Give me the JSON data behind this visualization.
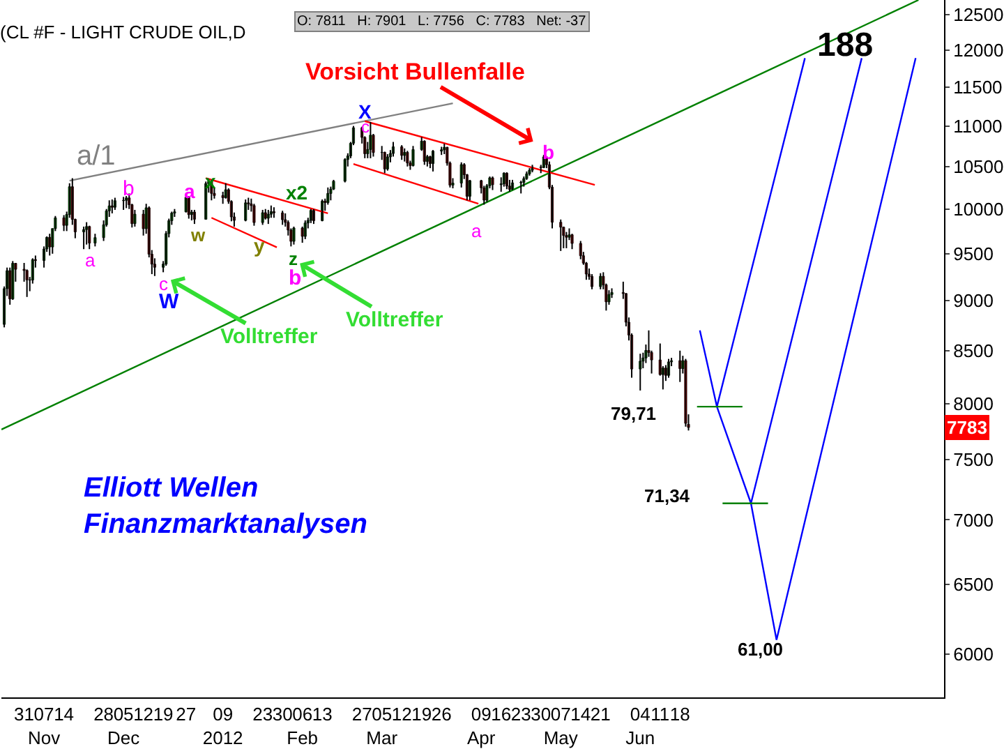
{
  "chart_data": {
    "type": "candlestick",
    "title": "(CL #F - LIGHT CRUDE OIL,D",
    "subtitle": "O: 7811   H: 7901   L: 7756   C: 7783   Net: -37",
    "log": true,
    "x": [
      "2011-10-24",
      "2011-10-25",
      "2011-10-26",
      "2011-10-27",
      "2011-10-28",
      "2011-10-31",
      "2011-11-01",
      "2011-11-02",
      "2011-11-03",
      "2011-11-04",
      "2011-11-07",
      "2011-11-08",
      "2011-11-09",
      "2011-11-10",
      "2011-11-11",
      "2011-11-14",
      "2011-11-15",
      "2011-11-16",
      "2011-11-17",
      "2011-11-18",
      "2011-11-21",
      "2011-11-22",
      "2011-11-23",
      "2011-11-25",
      "2011-11-28",
      "2011-11-29",
      "2011-11-30",
      "2011-12-01",
      "2011-12-02",
      "2011-12-05",
      "2011-12-06",
      "2011-12-07",
      "2011-12-08",
      "2011-12-09",
      "2011-12-12",
      "2011-12-13",
      "2011-12-14",
      "2011-12-15",
      "2011-12-16",
      "2011-12-19",
      "2011-12-20",
      "2011-12-21",
      "2011-12-22",
      "2011-12-23",
      "2011-12-27",
      "2011-12-28",
      "2011-12-29",
      "2011-12-30",
      "2012-01-03",
      "2012-01-04",
      "2012-01-05",
      "2012-01-06",
      "2012-01-09",
      "2012-01-10",
      "2012-01-11",
      "2012-01-12",
      "2012-01-13",
      "2012-01-17",
      "2012-01-18",
      "2012-01-19",
      "2012-01-20",
      "2012-01-23",
      "2012-01-24",
      "2012-01-25",
      "2012-01-26",
      "2012-01-27",
      "2012-01-30",
      "2012-01-31",
      "2012-02-01",
      "2012-02-02",
      "2012-02-03",
      "2012-02-06",
      "2012-02-07",
      "2012-02-08",
      "2012-02-09",
      "2012-02-10",
      "2012-02-13",
      "2012-02-14",
      "2012-02-15",
      "2012-02-16",
      "2012-02-17",
      "2012-02-21",
      "2012-02-22",
      "2012-02-23",
      "2012-02-24",
      "2012-02-27",
      "2012-02-28",
      "2012-02-29",
      "2012-03-01",
      "2012-03-02",
      "2012-03-05",
      "2012-03-06",
      "2012-03-07",
      "2012-03-08",
      "2012-03-09",
      "2012-03-12",
      "2012-03-13",
      "2012-03-14",
      "2012-03-15",
      "2012-03-16",
      "2012-03-19",
      "2012-03-20",
      "2012-03-21",
      "2012-03-22",
      "2012-03-23",
      "2012-03-26",
      "2012-03-27",
      "2012-03-28",
      "2012-03-29",
      "2012-03-30",
      "2012-04-02",
      "2012-04-03",
      "2012-04-04",
      "2012-04-05",
      "2012-04-09",
      "2012-04-10",
      "2012-04-11",
      "2012-04-12",
      "2012-04-13",
      "2012-04-16",
      "2012-04-17",
      "2012-04-18",
      "2012-04-19",
      "2012-04-20",
      "2012-04-23",
      "2012-04-24",
      "2012-04-25",
      "2012-04-26",
      "2012-04-27",
      "2012-04-30",
      "2012-05-01",
      "2012-05-02",
      "2012-05-03",
      "2012-05-04",
      "2012-05-07",
      "2012-05-08",
      "2012-05-09",
      "2012-05-10",
      "2012-05-11",
      "2012-05-14",
      "2012-05-15",
      "2012-05-16",
      "2012-05-17",
      "2012-05-18",
      "2012-05-21",
      "2012-05-22",
      "2012-05-23",
      "2012-05-24",
      "2012-05-25",
      "2012-05-29",
      "2012-05-30",
      "2012-05-31",
      "2012-06-01",
      "2012-06-04",
      "2012-06-05",
      "2012-06-06",
      "2012-06-07",
      "2012-06-08",
      "2012-06-11",
      "2012-06-12",
      "2012-06-13",
      "2012-06-14",
      "2012-06-15",
      "2012-06-18",
      "2012-06-19",
      "2012-06-20",
      "2012-06-21"
    ],
    "ohlc": [
      [
        8760,
        9150,
        8730,
        9127
      ],
      [
        9127,
        9350,
        9050,
        9317
      ],
      [
        9317,
        9350,
        8960,
        9020
      ],
      [
        9020,
        9420,
        9010,
        9396
      ],
      [
        9396,
        9400,
        9200,
        9332
      ],
      [
        9332,
        9400,
        9200,
        9319
      ],
      [
        9319,
        9330,
        9040,
        9219
      ],
      [
        9219,
        9250,
        9100,
        9217
      ],
      [
        9217,
        9450,
        9180,
        9436
      ],
      [
        9436,
        9480,
        9350,
        9426
      ],
      [
        9426,
        9580,
        9350,
        9552
      ],
      [
        9552,
        9690,
        9520,
        9680
      ],
      [
        9680,
        9720,
        9480,
        9574
      ],
      [
        9574,
        9780,
        9500,
        9778
      ],
      [
        9778,
        9920,
        9750,
        9899
      ],
      [
        9899,
        9930,
        9750,
        9814
      ],
      [
        9814,
        9970,
        9750,
        9937
      ],
      [
        9937,
        10300,
        9900,
        10259
      ],
      [
        10259,
        10360,
        9820,
        9882
      ],
      [
        9882,
        9890,
        9670,
        9741
      ],
      [
        9741,
        9800,
        9550,
        9767
      ],
      [
        9767,
        9850,
        9600,
        9801
      ],
      [
        9801,
        9810,
        9550,
        9617
      ],
      [
        9617,
        9720,
        9580,
        9677
      ],
      [
        9677,
        9870,
        9640,
        9821
      ],
      [
        9821,
        10000,
        9800,
        9979
      ],
      [
        9979,
        10100,
        9910,
        10036
      ],
      [
        10036,
        10110,
        9950,
        10020
      ],
      [
        10020,
        10130,
        9990,
        10096
      ],
      [
        10096,
        10140,
        9990,
        10100
      ],
      [
        10100,
        10150,
        10010,
        10128
      ],
      [
        10128,
        10180,
        10000,
        10049
      ],
      [
        10049,
        10060,
        9790,
        9834
      ],
      [
        9834,
        9990,
        9800,
        9941
      ],
      [
        9941,
        9990,
        9700,
        9777
      ],
      [
        9777,
        10060,
        9720,
        10014
      ],
      [
        10014,
        10030,
        9460,
        9495
      ],
      [
        9495,
        9540,
        9280,
        9387
      ],
      [
        9387,
        9450,
        9260,
        9353
      ],
      [
        9353,
        9420,
        9300,
        9388
      ],
      [
        9388,
        9750,
        9370,
        9722
      ],
      [
        9722,
        9890,
        9680,
        9867
      ],
      [
        9867,
        9970,
        9820,
        9953
      ],
      [
        9953,
        10000,
        9910,
        9968
      ],
      [
        9968,
        10160,
        9960,
        10134
      ],
      [
        10134,
        10150,
        9890,
        9936
      ],
      [
        9936,
        9990,
        9870,
        9965
      ],
      [
        9965,
        9990,
        9830,
        9883
      ],
      [
        9883,
        10320,
        9880,
        10296
      ],
      [
        10296,
        10350,
        10190,
        10322
      ],
      [
        10322,
        10340,
        10100,
        10181
      ],
      [
        10181,
        10250,
        10120,
        10156
      ],
      [
        10156,
        10200,
        10060,
        10131
      ],
      [
        10131,
        10300,
        10120,
        10224
      ],
      [
        10224,
        10240,
        10060,
        10087
      ],
      [
        10087,
        10100,
        9860,
        9910
      ],
      [
        9910,
        9960,
        9800,
        9870
      ],
      [
        9870,
        10110,
        9860,
        10071
      ],
      [
        10071,
        10130,
        9990,
        10059
      ],
      [
        10059,
        10120,
        9970,
        10039
      ],
      [
        10039,
        10060,
        9810,
        9846
      ],
      [
        9846,
        9990,
        9820,
        9958
      ],
      [
        9958,
        10000,
        9880,
        9895
      ],
      [
        9895,
        9990,
        9830,
        9940
      ],
      [
        9940,
        10040,
        9900,
        9970
      ],
      [
        9970,
        10020,
        9900,
        9956
      ],
      [
        9956,
        9980,
        9820,
        9878
      ],
      [
        9878,
        9950,
        9800,
        9848
      ],
      [
        9848,
        9870,
        9700,
        9761
      ],
      [
        9761,
        9780,
        9580,
        9636
      ],
      [
        9636,
        9800,
        9600,
        9784
      ],
      [
        9784,
        9800,
        9620,
        9691
      ],
      [
        9691,
        9870,
        9660,
        9841
      ],
      [
        9841,
        9900,
        9780,
        9870
      ],
      [
        9870,
        10000,
        9840,
        9984
      ],
      [
        9984,
        10000,
        9830,
        9867
      ],
      [
        9867,
        10110,
        9860,
        10091
      ],
      [
        10091,
        10120,
        9980,
        10074
      ],
      [
        10074,
        10250,
        10050,
        10180
      ],
      [
        10180,
        10260,
        10100,
        10231
      ],
      [
        10231,
        10340,
        10220,
        10324
      ],
      [
        10324,
        10600,
        10310,
        10584
      ],
      [
        10584,
        10660,
        10500,
        10628
      ],
      [
        10628,
        10800,
        10600,
        10783
      ],
      [
        10783,
        11000,
        10760,
        10977
      ],
      [
        10977,
        10990,
        10780,
        10856
      ],
      [
        10856,
        10870,
        10600,
        10655
      ],
      [
        10655,
        10800,
        10600,
        10707
      ],
      [
        10707,
        11050,
        10600,
        10884
      ],
      [
        10884,
        10900,
        10620,
        10670
      ],
      [
        10670,
        10750,
        10580,
        10672
      ],
      [
        10672,
        10680,
        10420,
        10470
      ],
      [
        10470,
        10650,
        10450,
        10616
      ],
      [
        10616,
        10700,
        10550,
        10658
      ],
      [
        10658,
        10800,
        10620,
        10740
      ],
      [
        10740,
        10760,
        10580,
        10634
      ],
      [
        10634,
        10720,
        10560,
        10671
      ],
      [
        10671,
        10690,
        10500,
        10543
      ],
      [
        10543,
        10570,
        10460,
        10511
      ],
      [
        10511,
        10750,
        10500,
        10706
      ],
      [
        10706,
        10860,
        10690,
        10809
      ],
      [
        10809,
        10820,
        10520,
        10561
      ],
      [
        10561,
        10640,
        10500,
        10619
      ],
      [
        10619,
        10630,
        10480,
        10535
      ],
      [
        10535,
        10700,
        10440,
        10687
      ],
      [
        10687,
        10740,
        10640,
        10703
      ],
      [
        10703,
        10780,
        10650,
        10733
      ],
      [
        10733,
        10740,
        10510,
        10541
      ],
      [
        10541,
        10560,
        10250,
        10278
      ],
      [
        10278,
        10360,
        10240,
        10302
      ],
      [
        10302,
        10550,
        10250,
        10523
      ],
      [
        10523,
        10540,
        10350,
        10401
      ],
      [
        10401,
        10410,
        10100,
        10147
      ],
      [
        10147,
        10340,
        10100,
        10331
      ],
      [
        10331,
        10340,
        10180,
        10246
      ],
      [
        10246,
        10270,
        10050,
        10102
      ],
      [
        10102,
        10290,
        10080,
        10270
      ],
      [
        10270,
        10380,
        10240,
        10364
      ],
      [
        10364,
        10380,
        10220,
        10283
      ],
      [
        10283,
        10370,
        10200,
        10293
      ],
      [
        10293,
        10430,
        10260,
        10420
      ],
      [
        10420,
        10430,
        10230,
        10267
      ],
      [
        10267,
        10340,
        10200,
        10227
      ],
      [
        10227,
        10340,
        10220,
        10305
      ],
      [
        10305,
        10330,
        10180,
        10311
      ],
      [
        10311,
        10380,
        10260,
        10355
      ],
      [
        10355,
        10440,
        10340,
        10412
      ],
      [
        10412,
        10480,
        10390,
        10455
      ],
      [
        10455,
        10520,
        10430,
        10493
      ],
      [
        10493,
        10520,
        10420,
        10487
      ],
      [
        10487,
        10640,
        10480,
        10616
      ],
      [
        10616,
        10620,
        10480,
        10522
      ],
      [
        10522,
        10560,
        10230,
        10254
      ],
      [
        10254,
        10280,
        9780,
        9849
      ],
      [
        9849,
        9880,
        9530,
        9794
      ],
      [
        9794,
        9800,
        9560,
        9701
      ],
      [
        9701,
        9740,
        9560,
        9681
      ],
      [
        9681,
        9780,
        9650,
        9708
      ],
      [
        9708,
        9720,
        9550,
        9613
      ],
      [
        9613,
        9640,
        9440,
        9478
      ],
      [
        9478,
        9520,
        9380,
        9398
      ],
      [
        9398,
        9410,
        9220,
        9281
      ],
      [
        9281,
        9340,
        9220,
        9256
      ],
      [
        9256,
        9280,
        9120,
        9148
      ],
      [
        9148,
        9290,
        9120,
        9257
      ],
      [
        9257,
        9300,
        9120,
        9166
      ],
      [
        9166,
        9180,
        8900,
        8990
      ],
      [
        8990,
        9110,
        8960,
        9066
      ],
      [
        9066,
        9130,
        9030,
        9086
      ],
      [
        9086,
        9200,
        9020,
        9076
      ],
      [
        9076,
        9080,
        8740,
        8782
      ],
      [
        8782,
        8830,
        8600,
        8653
      ],
      [
        8653,
        8670,
        8240,
        8323
      ],
      [
        8323,
        8470,
        8120,
        8398
      ],
      [
        8398,
        8480,
        8330,
        8429
      ],
      [
        8429,
        8560,
        8380,
        8502
      ],
      [
        8502,
        8700,
        8440,
        8482
      ],
      [
        8482,
        8500,
        8280,
        8410
      ],
      [
        8410,
        8570,
        8260,
        8270
      ],
      [
        8270,
        8350,
        8130,
        8332
      ],
      [
        8332,
        8360,
        8210,
        8262
      ],
      [
        8262,
        8420,
        8240,
        8391
      ],
      [
        8391,
        8430,
        8350,
        8403
      ],
      [
        8403,
        8500,
        8200,
        8327
      ],
      [
        8327,
        8450,
        8280,
        8403
      ],
      [
        8403,
        8420,
        7790,
        7820
      ],
      [
        7811,
        7901,
        7756,
        7783
      ]
    ],
    "series": [
      {
        "type": "line",
        "color": "#008000",
        "x": [
          "2011-10-23",
          "2012-09-10"
        ],
        "values": [
          7765,
          12710
        ]
      },
      {
        "type": "line",
        "color": "#808080",
        "x": [
          "2011-11-16",
          "2012-03-30"
        ],
        "values": [
          10330,
          11290
        ]
      },
      {
        "type": "line",
        "color": "#ff0000",
        "x": [
          "2012-01-03",
          "2012-02-15"
        ],
        "values": [
          10360,
          9950
        ]
      },
      {
        "type": "line",
        "color": "#ff0000",
        "x": [
          "2012-01-05",
          "2012-01-28"
        ],
        "values": [
          9900,
          9570
        ]
      },
      {
        "type": "line",
        "color": "#ff0000",
        "x": [
          "2012-02-28",
          "2012-05-19"
        ],
        "values": [
          11060,
          10280
        ]
      },
      {
        "type": "line",
        "color": "#ff0000",
        "x": [
          "2012-02-24",
          "2012-04-08"
        ],
        "values": [
          10530,
          10060
        ]
      },
      {
        "type": "line",
        "color": "#0000ff",
        "x": [
          "2012-06-25",
          "2012-07-01",
          "2012-08-01"
        ],
        "values": [
          8700,
          7971,
          11890
        ]
      },
      {
        "type": "line",
        "color": "#0000ff",
        "x": [
          "2012-07-01",
          "2012-07-13",
          "2012-08-21"
        ],
        "values": [
          7971,
          7134,
          11890
        ]
      },
      {
        "type": "line",
        "color": "#0000ff",
        "x": [
          "2012-07-13",
          "2012-07-22",
          "2012-09-09"
        ],
        "values": [
          7134,
          6100,
          11890
        ]
      },
      {
        "type": "line",
        "color": "#008000",
        "x": [
          "2012-06-24",
          "2012-07-10"
        ],
        "values": [
          7971,
          7971
        ]
      },
      {
        "type": "line",
        "color": "#008000",
        "x": [
          "2012-07-03",
          "2012-07-19"
        ],
        "values": [
          7134,
          7134
        ]
      }
    ],
    "xlim": [
      "2011-10-23",
      "2012-09-19"
    ],
    "xticks": [
      {
        "value": "2011-10-31",
        "label": "31"
      },
      {
        "value": "2011-11-07",
        "label": "07\nNov"
      },
      {
        "value": "2011-11-14",
        "label": "14"
      },
      {
        "value": "2011-11-28",
        "label": "28"
      },
      {
        "value": "2011-12-05",
        "label": "05\nDec"
      },
      {
        "value": "2011-12-12",
        "label": "12"
      },
      {
        "value": "2011-12-19",
        "label": "19"
      },
      {
        "value": "2011-12-27",
        "label": "27"
      },
      {
        "value": "2012-01-09",
        "label": "09\n2012"
      },
      {
        "value": "2012-01-23",
        "label": "23"
      },
      {
        "value": "2012-01-30",
        "label": "30"
      },
      {
        "value": "2012-02-06",
        "label": "06\nFeb"
      },
      {
        "value": "2012-02-13",
        "label": "13"
      },
      {
        "value": "2012-02-27",
        "label": "27"
      },
      {
        "value": "2012-03-05",
        "label": "05\nMar"
      },
      {
        "value": "2012-03-12",
        "label": "12"
      },
      {
        "value": "2012-03-19",
        "label": "19"
      },
      {
        "value": "2012-03-26",
        "label": "26"
      },
      {
        "value": "2012-04-09",
        "label": "09\nApr"
      },
      {
        "value": "2012-04-16",
        "label": "16"
      },
      {
        "value": "2012-04-23",
        "label": "23"
      },
      {
        "value": "2012-04-30",
        "label": "30"
      },
      {
        "value": "2012-05-07",
        "label": "07\nMay"
      },
      {
        "value": "2012-05-14",
        "label": "14"
      },
      {
        "value": "2012-05-21",
        "label": "21"
      },
      {
        "value": "2012-06-04",
        "label": "04\nJun"
      },
      {
        "value": "2012-06-11",
        "label": "11"
      },
      {
        "value": "2012-06-18",
        "label": "18"
      }
    ],
    "ylim": [
      5710,
      12710
    ],
    "yticks": [
      6000,
      6500,
      7000,
      7500,
      8000,
      8500,
      9000,
      9500,
      10000,
      10500,
      11000,
      11500,
      12000,
      12500
    ],
    "annotations": [
      "a/1",
      "b",
      "a",
      "c",
      "W",
      "a",
      "x",
      "w",
      "y",
      "x2",
      "z",
      "b",
      "X",
      "c",
      "a",
      "b",
      "Vorsicht Bullenfalle",
      "Volltreffer",
      "Volltreffer",
      "79,71",
      "71,34",
      "61,00",
      "188",
      {
        "text": "7783",
        "y": 7783
      },
      "Elliott Wellen\nFinanzmarktanalysen"
    ]
  }
}
